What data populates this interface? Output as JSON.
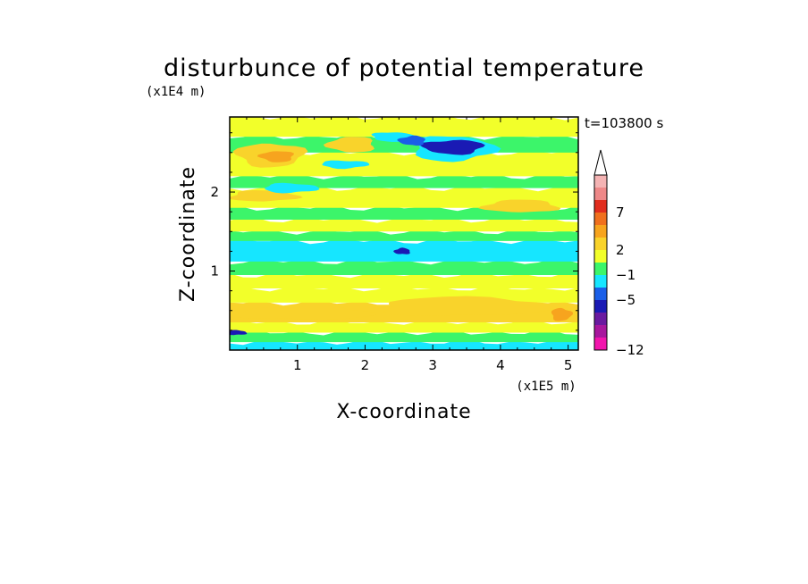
{
  "chart_data": {
    "type": "heatmap",
    "title": "disturbunce of potential temperature",
    "xlabel": "X-coordinate",
    "ylabel": "Z-coordinate",
    "x_unit": "(x1E5 m)",
    "y_unit": "(x1E4 m)",
    "time_label": "t=103800 s",
    "xlim": [
      0,
      5.15
    ],
    "ylim": [
      0,
      2.95
    ],
    "x_ticks": [
      1,
      2,
      3,
      4,
      5
    ],
    "y_ticks": [
      1,
      2
    ],
    "colorbar": {
      "tick_labels": [
        "7",
        "2",
        "−1",
        "−5",
        "−12"
      ],
      "levels_top_to_bottom": [
        {
          "color": "#f4b3b3"
        },
        {
          "color": "#ee8888"
        },
        {
          "color": "#e12d1e"
        },
        {
          "color": "#f0701e"
        },
        {
          "color": "#f7a41e"
        },
        {
          "color": "#f9d32b"
        },
        {
          "color": "#f2ff2a"
        },
        {
          "color": "#3cf56a"
        },
        {
          "color": "#16e6ff"
        },
        {
          "color": "#1a5fe8"
        },
        {
          "color": "#1a1ab4"
        },
        {
          "color": "#6a1aa0"
        },
        {
          "color": "#a8179e"
        },
        {
          "color": "#f215ad"
        }
      ]
    },
    "field_bands": [
      {
        "z_from": 0.0,
        "z_to": 0.1,
        "value": -1,
        "color": "#16e6ff"
      },
      {
        "z_from": 0.1,
        "z_to": 0.22,
        "value": 0,
        "color": "#3cf56a"
      },
      {
        "z_from": 0.22,
        "z_to": 0.35,
        "value": 1,
        "color": "#f2ff2a"
      },
      {
        "z_from": 0.35,
        "z_to": 0.6,
        "value": 2,
        "color": "#f9d32b"
      },
      {
        "z_from": 0.6,
        "z_to": 0.78,
        "value": 1,
        "color": "#f2ff2a"
      },
      {
        "z_from": 0.78,
        "z_to": 0.95,
        "value": 1,
        "color": "#f2ff2a"
      },
      {
        "z_from": 0.95,
        "z_to": 1.12,
        "value": 0,
        "color": "#3cf56a"
      },
      {
        "z_from": 1.12,
        "z_to": 1.38,
        "value": -1,
        "color": "#16e6ff"
      },
      {
        "z_from": 1.38,
        "z_to": 1.5,
        "value": 0,
        "color": "#3cf56a"
      },
      {
        "z_from": 1.5,
        "z_to": 1.65,
        "value": 1,
        "color": "#f2ff2a"
      },
      {
        "z_from": 1.65,
        "z_to": 1.8,
        "value": 0,
        "color": "#3cf56a"
      },
      {
        "z_from": 1.8,
        "z_to": 2.05,
        "value": 1,
        "color": "#f2ff2a"
      },
      {
        "z_from": 2.05,
        "z_to": 2.2,
        "value": 0,
        "color": "#3cf56a"
      },
      {
        "z_from": 2.2,
        "z_to": 2.5,
        "value": 1,
        "color": "#f2ff2a"
      },
      {
        "z_from": 2.5,
        "z_to": 2.7,
        "value": 0,
        "color": "#3cf56a"
      },
      {
        "z_from": 2.7,
        "z_to": 2.95,
        "value": 1,
        "color": "#f2ff2a"
      }
    ],
    "field_patches": [
      {
        "x": 1.1,
        "z": 0.47,
        "rx": 1.0,
        "rz": 0.09,
        "value": 2,
        "color": "#f9d32b"
      },
      {
        "x": 3.5,
        "z": 0.55,
        "rx": 1.3,
        "rz": 0.12,
        "value": 2,
        "color": "#f9d32b"
      },
      {
        "x": 4.9,
        "z": 0.45,
        "rx": 0.15,
        "rz": 0.08,
        "value": 3,
        "color": "#f7a41e"
      },
      {
        "x": 0.6,
        "z": 2.47,
        "rx": 0.5,
        "rz": 0.15,
        "value": 2,
        "color": "#f9d32b"
      },
      {
        "x": 0.7,
        "z": 2.45,
        "rx": 0.25,
        "rz": 0.07,
        "value": 3,
        "color": "#f7a41e"
      },
      {
        "x": 1.8,
        "z": 2.6,
        "rx": 0.35,
        "rz": 0.1,
        "value": 2,
        "color": "#f9d32b"
      },
      {
        "x": 4.3,
        "z": 1.82,
        "rx": 0.55,
        "rz": 0.08,
        "value": 2,
        "color": "#f9d32b"
      },
      {
        "x": 0.5,
        "z": 1.95,
        "rx": 0.5,
        "rz": 0.07,
        "value": 2,
        "color": "#f9d32b"
      },
      {
        "x": 3.3,
        "z": 2.55,
        "rx": 0.6,
        "rz": 0.16,
        "value": -1,
        "color": "#16e6ff"
      },
      {
        "x": 2.4,
        "z": 2.7,
        "rx": 0.3,
        "rz": 0.06,
        "value": -1,
        "color": "#16e6ff"
      },
      {
        "x": 3.3,
        "z": 2.57,
        "rx": 0.45,
        "rz": 0.09,
        "value": -5,
        "color": "#1a1ab4"
      },
      {
        "x": 2.7,
        "z": 2.65,
        "rx": 0.2,
        "rz": 0.06,
        "value": -4,
        "color": "#1a5fe8"
      },
      {
        "x": 2.55,
        "z": 1.25,
        "rx": 0.12,
        "rz": 0.04,
        "value": -5,
        "color": "#1a1ab4"
      },
      {
        "x": 0.1,
        "z": 0.22,
        "rx": 0.15,
        "rz": 0.03,
        "value": -5,
        "color": "#1a1ab4"
      },
      {
        "x": 0.9,
        "z": 2.05,
        "rx": 0.4,
        "rz": 0.06,
        "value": -1,
        "color": "#16e6ff"
      },
      {
        "x": 1.7,
        "z": 2.35,
        "rx": 0.35,
        "rz": 0.05,
        "value": -1,
        "color": "#16e6ff"
      }
    ]
  }
}
